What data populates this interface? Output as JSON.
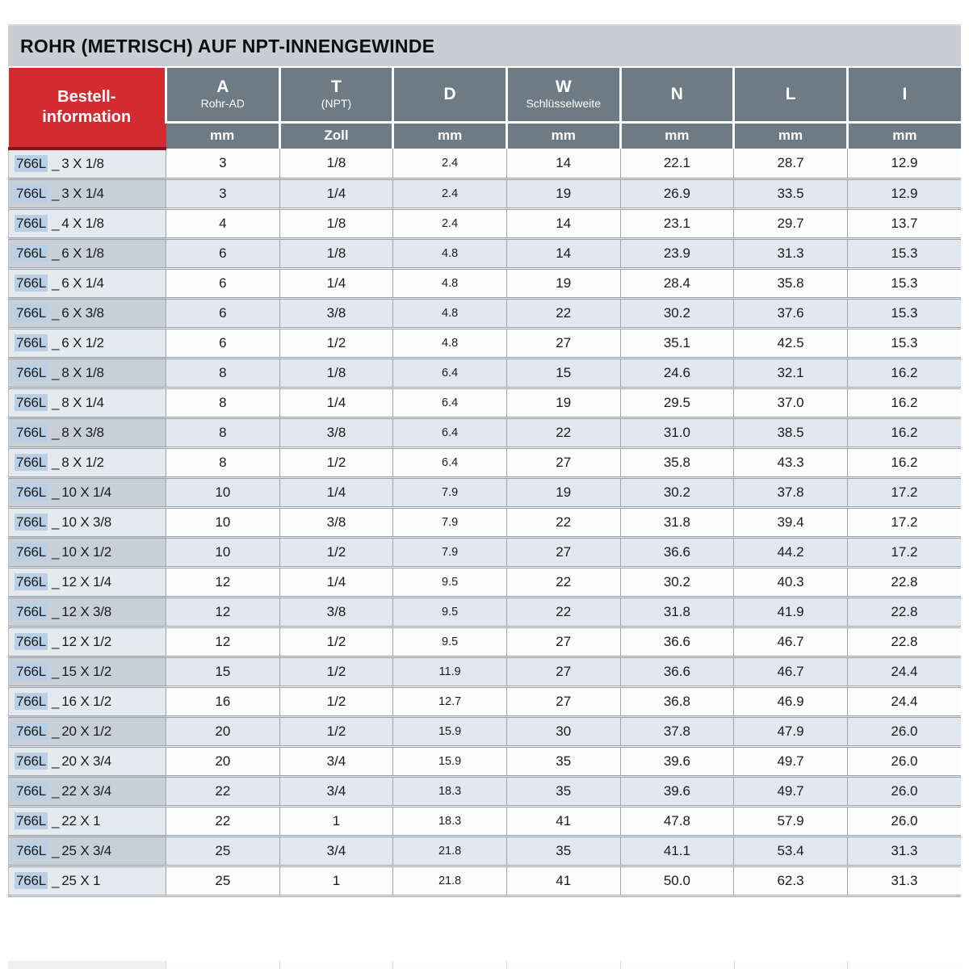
{
  "title": "ROHR (METRISCH) AUF NPT-INNENGEWINDE",
  "colors": {
    "accent_red": "#d32b30",
    "accent_red_dark": "#7d181c",
    "header_slate": "#6e7b85",
    "title_band": "#c9ced3",
    "row_alt_blue": "#e1e8ef",
    "order_col_odd": "#e5eaee",
    "order_col_even": "#c7d0d9",
    "code_highlight": "#b9cfe6",
    "grid_line": "#98a0a8"
  },
  "table": {
    "order_header": {
      "line1": "Bestell-",
      "line2": "information"
    },
    "order_prefix": "766L",
    "order_separator": "_",
    "columns": [
      {
        "symbol": "A",
        "sub": "Rohr-AD",
        "unit": "mm"
      },
      {
        "symbol": "T",
        "sub": "(NPT)",
        "unit": "Zoll"
      },
      {
        "symbol": "D",
        "sub": "",
        "unit": "mm"
      },
      {
        "symbol": "W",
        "sub": "Schlüsselweite",
        "unit": "mm"
      },
      {
        "symbol": "N",
        "sub": "",
        "unit": "mm"
      },
      {
        "symbol": "L",
        "sub": "",
        "unit": "mm"
      },
      {
        "symbol": "I",
        "sub": "",
        "unit": "mm"
      }
    ],
    "rows": [
      {
        "size": "3 X 1/8",
        "values": [
          "3",
          "1/8",
          "2.4",
          "14",
          "22.1",
          "28.7",
          "12.9"
        ]
      },
      {
        "size": "3 X 1/4",
        "values": [
          "3",
          "1/4",
          "2.4",
          "19",
          "26.9",
          "33.5",
          "12.9"
        ]
      },
      {
        "size": "4 X 1/8",
        "values": [
          "4",
          "1/8",
          "2.4",
          "14",
          "23.1",
          "29.7",
          "13.7"
        ]
      },
      {
        "size": "6 X 1/8",
        "values": [
          "6",
          "1/8",
          "4.8",
          "14",
          "23.9",
          "31.3",
          "15.3"
        ]
      },
      {
        "size": "6 X 1/4",
        "values": [
          "6",
          "1/4",
          "4.8",
          "19",
          "28.4",
          "35.8",
          "15.3"
        ]
      },
      {
        "size": "6 X 3/8",
        "values": [
          "6",
          "3/8",
          "4.8",
          "22",
          "30.2",
          "37.6",
          "15.3"
        ]
      },
      {
        "size": "6 X 1/2",
        "values": [
          "6",
          "1/2",
          "4.8",
          "27",
          "35.1",
          "42.5",
          "15.3"
        ]
      },
      {
        "size": "8 X 1/8",
        "values": [
          "8",
          "1/8",
          "6.4",
          "15",
          "24.6",
          "32.1",
          "16.2"
        ]
      },
      {
        "size": "8 X 1/4",
        "values": [
          "8",
          "1/4",
          "6.4",
          "19",
          "29.5",
          "37.0",
          "16.2"
        ]
      },
      {
        "size": "8 X 3/8",
        "values": [
          "8",
          "3/8",
          "6.4",
          "22",
          "31.0",
          "38.5",
          "16.2"
        ]
      },
      {
        "size": "8 X 1/2",
        "values": [
          "8",
          "1/2",
          "6.4",
          "27",
          "35.8",
          "43.3",
          "16.2"
        ]
      },
      {
        "size": "10 X 1/4",
        "values": [
          "10",
          "1/4",
          "7.9",
          "19",
          "30.2",
          "37.8",
          "17.2"
        ]
      },
      {
        "size": "10 X 3/8",
        "values": [
          "10",
          "3/8",
          "7.9",
          "22",
          "31.8",
          "39.4",
          "17.2"
        ]
      },
      {
        "size": "10 X 1/2",
        "values": [
          "10",
          "1/2",
          "7.9",
          "27",
          "36.6",
          "44.2",
          "17.2"
        ]
      },
      {
        "size": "12 X 1/4",
        "values": [
          "12",
          "1/4",
          "9.5",
          "22",
          "30.2",
          "40.3",
          "22.8"
        ]
      },
      {
        "size": "12 X 3/8",
        "values": [
          "12",
          "3/8",
          "9.5",
          "22",
          "31.8",
          "41.9",
          "22.8"
        ]
      },
      {
        "size": "12 X 1/2",
        "values": [
          "12",
          "1/2",
          "9.5",
          "27",
          "36.6",
          "46.7",
          "22.8"
        ]
      },
      {
        "size": "15 X 1/2",
        "values": [
          "15",
          "1/2",
          "11.9",
          "27",
          "36.6",
          "46.7",
          "24.4"
        ]
      },
      {
        "size": "16 X 1/2",
        "values": [
          "16",
          "1/2",
          "12.7",
          "27",
          "36.8",
          "46.9",
          "24.4"
        ]
      },
      {
        "size": "20 X 1/2",
        "values": [
          "20",
          "1/2",
          "15.9",
          "30",
          "37.8",
          "47.9",
          "26.0"
        ]
      },
      {
        "size": "20 X 3/4",
        "values": [
          "20",
          "3/4",
          "15.9",
          "35",
          "39.6",
          "49.7",
          "26.0"
        ]
      },
      {
        "size": "22 X 3/4",
        "values": [
          "22",
          "3/4",
          "18.3",
          "35",
          "39.6",
          "49.7",
          "26.0"
        ]
      },
      {
        "size": "22 X 1",
        "values": [
          "22",
          "1",
          "18.3",
          "41",
          "47.8",
          "57.9",
          "26.0"
        ]
      },
      {
        "size": "25 X 3/4",
        "values": [
          "25",
          "3/4",
          "21.8",
          "35",
          "41.1",
          "53.4",
          "31.3"
        ]
      },
      {
        "size": "25 X 1",
        "values": [
          "25",
          "1",
          "21.8",
          "41",
          "50.0",
          "62.3",
          "31.3"
        ]
      }
    ]
  }
}
